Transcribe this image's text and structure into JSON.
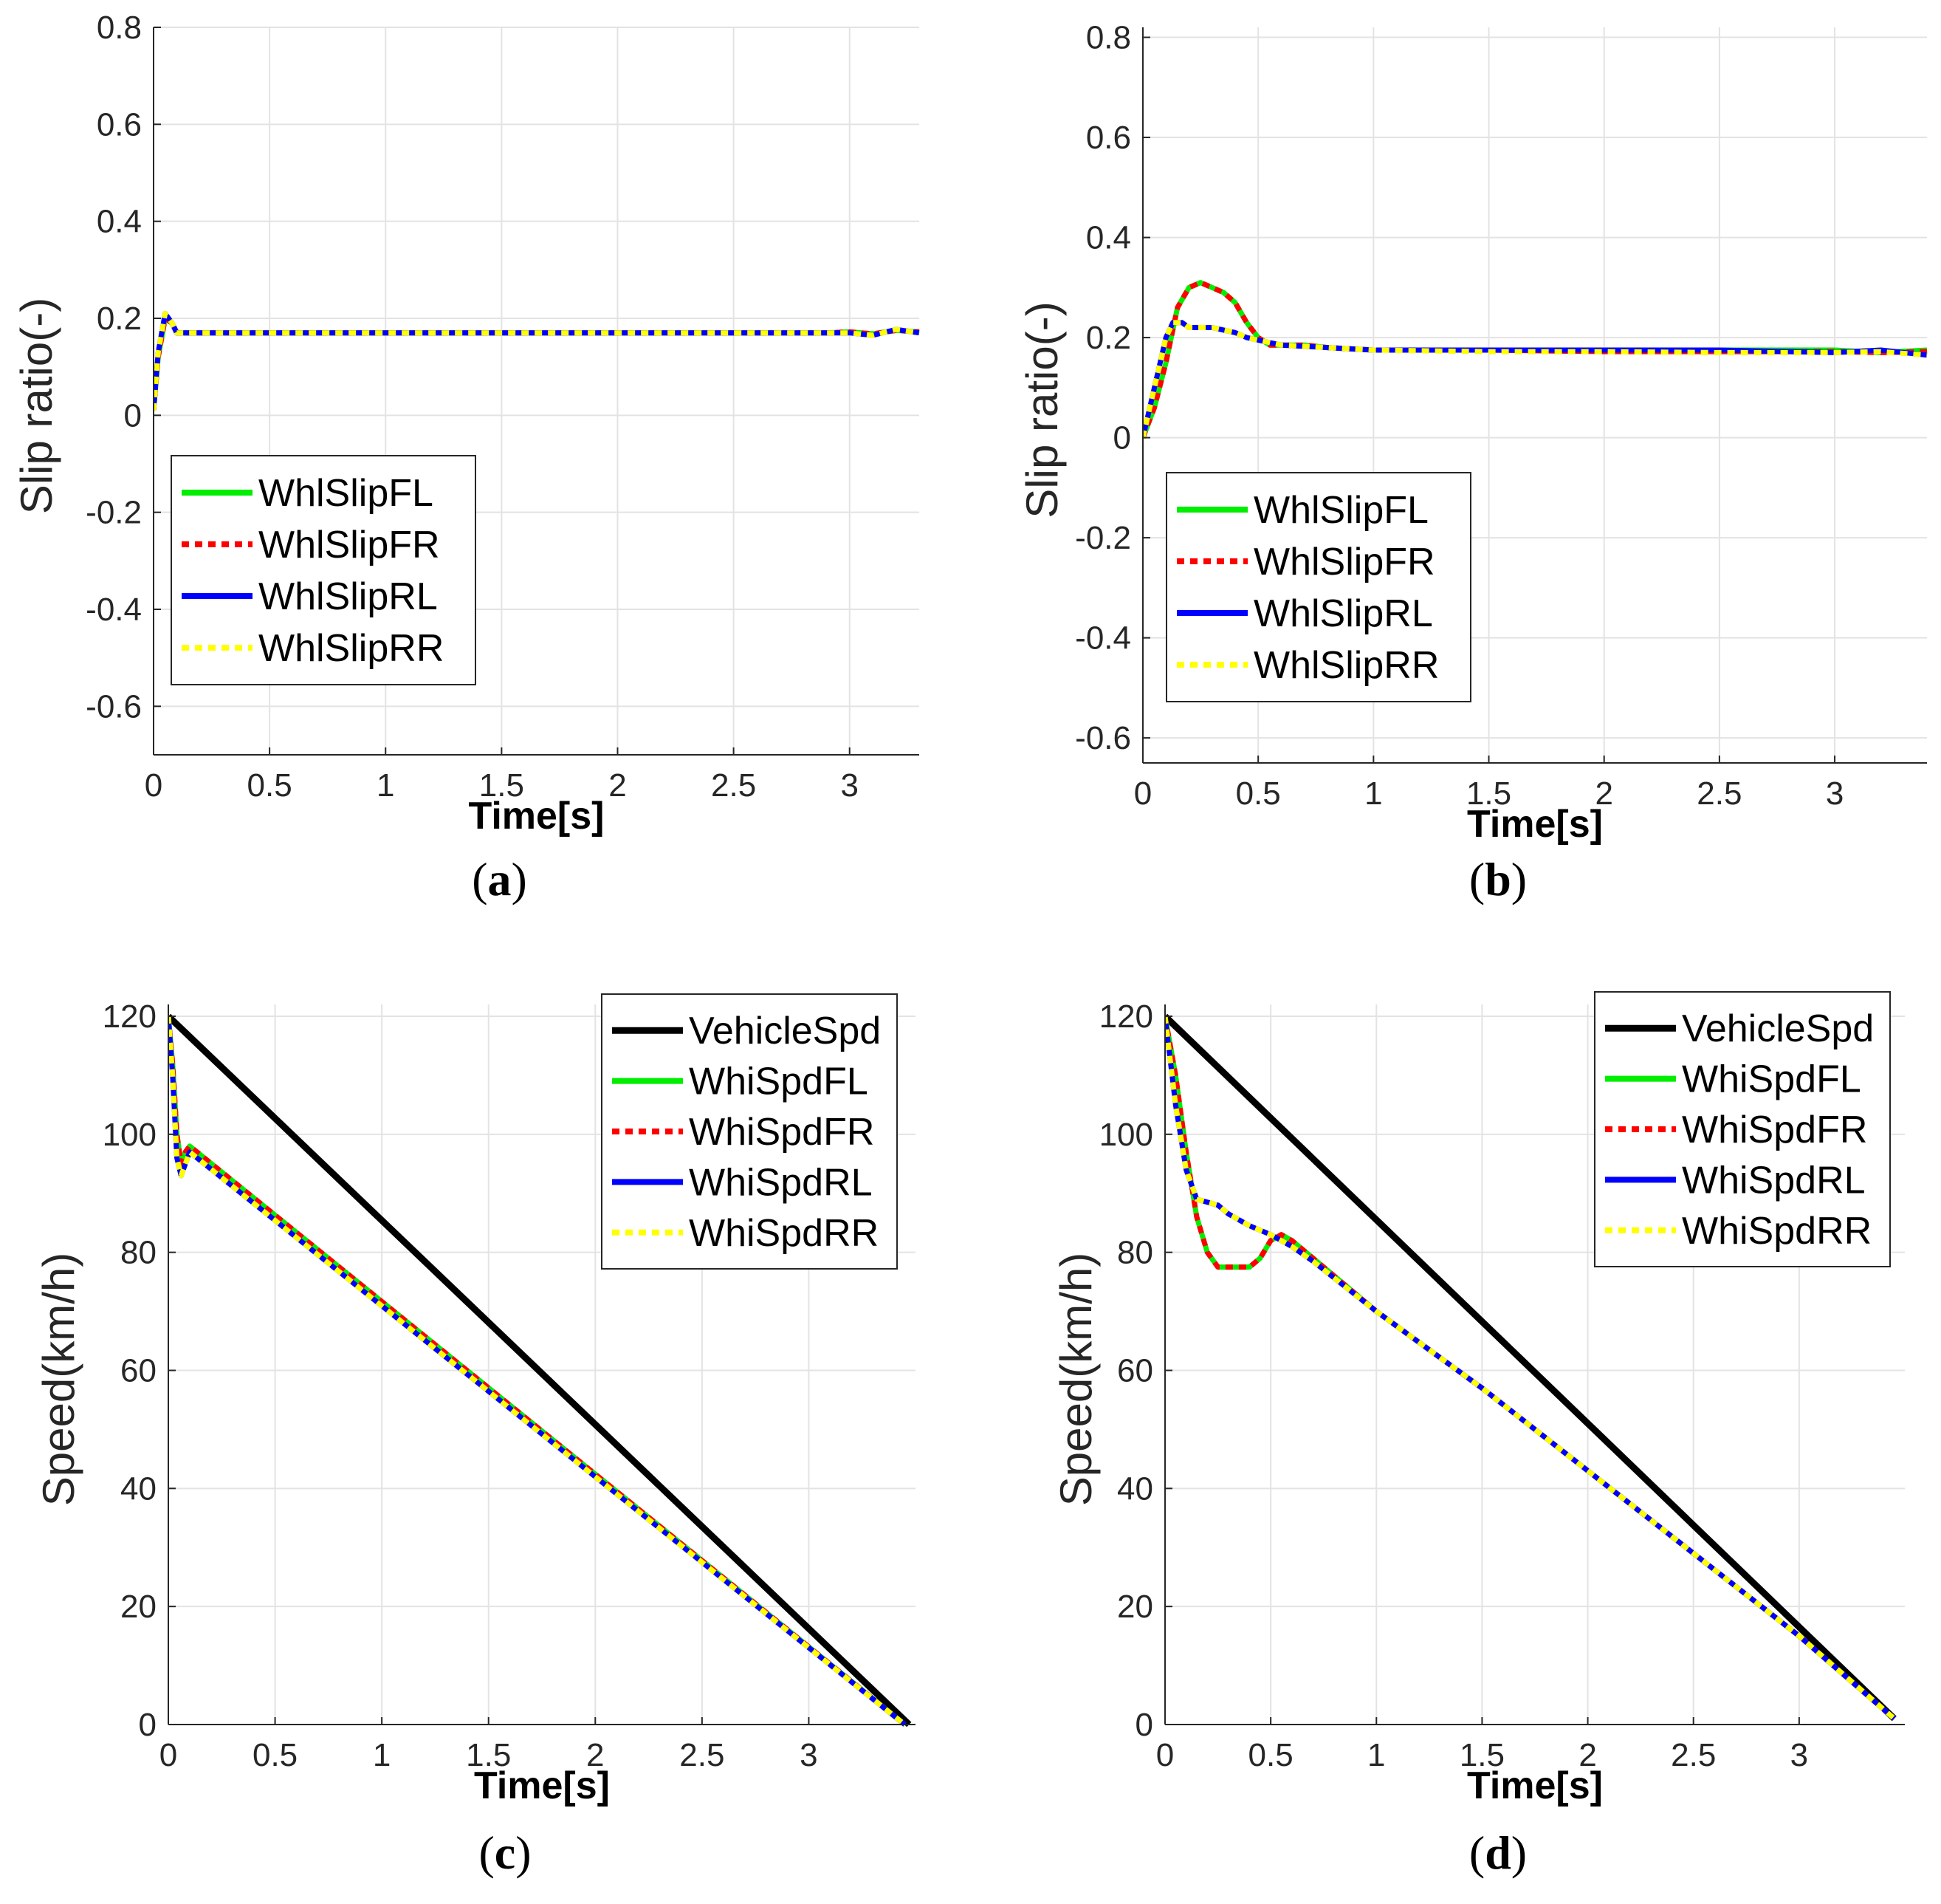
{
  "chart_data": [
    {
      "id": "a",
      "type": "line",
      "caption_letter": "a",
      "xlabel": "Time[s]",
      "ylabel": "Slip ratio(-)",
      "xlim": [
        0,
        3.3
      ],
      "ylim": [
        -0.7,
        0.8
      ],
      "xticks": [
        0,
        0.5,
        1,
        1.5,
        2,
        2.5,
        3
      ],
      "xtick_labels": [
        "0",
        "0.5",
        "1",
        "1.5",
        "2",
        "2.5",
        "3"
      ],
      "yticks": [
        0.8,
        0.6,
        0.4,
        0.2,
        0,
        -0.2,
        -0.4,
        -0.6
      ],
      "ytick_labels": [
        "0.8",
        "0.6",
        "0.4",
        "0.2",
        "0",
        "-0.2",
        "-0.4",
        "-0.6"
      ],
      "grid": true,
      "legend_position": "bottom-left",
      "series": [
        {
          "name": "WhlSlipFL",
          "color": "#00ee00",
          "style": "solid",
          "x": [
            0,
            0.02,
            0.05,
            0.08,
            0.1,
            0.2,
            0.5,
            1.0,
            1.5,
            2.0,
            2.5,
            2.9,
            3.0,
            3.1,
            3.2,
            3.3
          ],
          "y": [
            0.01,
            0.12,
            0.2,
            0.19,
            0.17,
            0.17,
            0.17,
            0.17,
            0.17,
            0.17,
            0.17,
            0.17,
            0.172,
            0.168,
            0.175,
            0.172
          ]
        },
        {
          "name": "WhlSlipFR",
          "color": "#ff0000",
          "style": "dotted",
          "x": [
            0,
            0.02,
            0.05,
            0.08,
            0.1,
            0.2,
            0.5,
            1.0,
            1.5,
            2.0,
            2.5,
            2.9,
            3.0,
            3.1,
            3.2,
            3.3
          ],
          "y": [
            0.01,
            0.12,
            0.2,
            0.19,
            0.17,
            0.17,
            0.17,
            0.17,
            0.17,
            0.17,
            0.17,
            0.17,
            0.172,
            0.168,
            0.175,
            0.172
          ]
        },
        {
          "name": "WhlSlipRL",
          "color": "#0000ff",
          "style": "solid",
          "x": [
            0,
            0.02,
            0.05,
            0.08,
            0.1,
            0.2,
            0.5,
            1.0,
            1.5,
            2.0,
            2.5,
            2.9,
            3.0,
            3.1,
            3.2,
            3.3
          ],
          "y": [
            0.01,
            0.13,
            0.21,
            0.19,
            0.17,
            0.17,
            0.17,
            0.17,
            0.17,
            0.17,
            0.17,
            0.17,
            0.17,
            0.165,
            0.177,
            0.17
          ]
        },
        {
          "name": "WhlSlipRR",
          "color": "#ffff00",
          "style": "dotted",
          "x": [
            0,
            0.02,
            0.05,
            0.08,
            0.1,
            0.2,
            0.5,
            1.0,
            1.5,
            2.0,
            2.5,
            2.9,
            3.0,
            3.1,
            3.2,
            3.3
          ],
          "y": [
            0.01,
            0.13,
            0.21,
            0.19,
            0.17,
            0.17,
            0.17,
            0.17,
            0.17,
            0.17,
            0.17,
            0.17,
            0.17,
            0.165,
            0.177,
            0.17
          ]
        }
      ]
    },
    {
      "id": "b",
      "type": "line",
      "caption_letter": "b",
      "xlabel": "Time[s]",
      "ylabel": "Slip ratio(-)",
      "xlim": [
        0,
        3.4
      ],
      "ylim": [
        -0.65,
        0.82
      ],
      "xticks": [
        0,
        0.5,
        1,
        1.5,
        2,
        2.5,
        3
      ],
      "xtick_labels": [
        "0",
        "0.5",
        "1",
        "1.5",
        "2",
        "2.5",
        "3"
      ],
      "yticks": [
        0.8,
        0.6,
        0.4,
        0.2,
        0,
        -0.2,
        -0.4,
        -0.6
      ],
      "ytick_labels": [
        "0.8",
        "0.6",
        "0.4",
        "0.2",
        "0",
        "-0.2",
        "-0.4",
        "-0.6"
      ],
      "grid": true,
      "legend_position": "bottom-left",
      "series": [
        {
          "name": "WhlSlipFL",
          "color": "#00ee00",
          "style": "solid",
          "x": [
            0,
            0.05,
            0.1,
            0.15,
            0.2,
            0.25,
            0.3,
            0.35,
            0.4,
            0.45,
            0.5,
            0.55,
            0.6,
            0.7,
            0.8,
            1.0,
            1.5,
            2.0,
            2.5,
            3.0,
            3.2,
            3.4
          ],
          "y": [
            0.0,
            0.06,
            0.15,
            0.26,
            0.3,
            0.31,
            0.3,
            0.29,
            0.27,
            0.23,
            0.2,
            0.185,
            0.185,
            0.185,
            0.18,
            0.175,
            0.175,
            0.175,
            0.175,
            0.175,
            0.17,
            0.175
          ]
        },
        {
          "name": "WhlSlipFR",
          "color": "#ff0000",
          "style": "dotted",
          "x": [
            0,
            0.05,
            0.1,
            0.15,
            0.2,
            0.25,
            0.3,
            0.35,
            0.4,
            0.45,
            0.5,
            0.55,
            0.6,
            0.7,
            0.8,
            1.0,
            1.5,
            2.0,
            2.5,
            3.0,
            3.2,
            3.4
          ],
          "y": [
            0.0,
            0.06,
            0.15,
            0.26,
            0.3,
            0.31,
            0.3,
            0.29,
            0.27,
            0.23,
            0.2,
            0.185,
            0.185,
            0.185,
            0.18,
            0.175,
            0.175,
            0.172,
            0.172,
            0.172,
            0.17,
            0.172
          ]
        },
        {
          "name": "WhlSlipRL",
          "color": "#0000ff",
          "style": "solid",
          "x": [
            0,
            0.05,
            0.1,
            0.13,
            0.17,
            0.2,
            0.25,
            0.3,
            0.35,
            0.4,
            0.45,
            0.5,
            0.55,
            0.6,
            0.8,
            1.0,
            1.5,
            2.0,
            2.5,
            3.0,
            3.2,
            3.4
          ],
          "y": [
            0.0,
            0.1,
            0.2,
            0.23,
            0.23,
            0.22,
            0.22,
            0.22,
            0.215,
            0.21,
            0.2,
            0.195,
            0.19,
            0.185,
            0.18,
            0.175,
            0.175,
            0.175,
            0.175,
            0.17,
            0.175,
            0.165
          ]
        },
        {
          "name": "WhlSlipRR",
          "color": "#ffff00",
          "style": "dotted",
          "x": [
            0,
            0.05,
            0.1,
            0.13,
            0.17,
            0.2,
            0.25,
            0.3,
            0.35,
            0.4,
            0.45,
            0.5,
            0.55,
            0.6,
            0.8,
            1.0,
            1.5,
            2.0,
            2.5,
            3.0,
            3.2,
            3.4
          ],
          "y": [
            0.0,
            0.1,
            0.2,
            0.23,
            0.23,
            0.22,
            0.22,
            0.22,
            0.215,
            0.21,
            0.2,
            0.195,
            0.19,
            0.185,
            0.18,
            0.175,
            0.172,
            0.172,
            0.17,
            0.17,
            0.172,
            0.165
          ]
        }
      ]
    },
    {
      "id": "c",
      "type": "line",
      "caption_letter": "c",
      "xlabel": "Time[s]",
      "ylabel": "Speed(km/h)",
      "xlim": [
        0,
        3.5
      ],
      "ylim": [
        0,
        122
      ],
      "xticks": [
        0,
        0.5,
        1,
        1.5,
        2,
        2.5,
        3
      ],
      "xtick_labels": [
        "0",
        "0.5",
        "1",
        "1.5",
        "2",
        "2.5",
        "3"
      ],
      "yticks": [
        120,
        100,
        80,
        60,
        40,
        20,
        0
      ],
      "ytick_labels": [
        "120",
        "100",
        "80",
        "60",
        "40",
        "20",
        "0"
      ],
      "grid": true,
      "legend_position": "top-right",
      "series": [
        {
          "name": "VehicleSpd",
          "color": "#000000",
          "style": "solid",
          "x": [
            0,
            3.47
          ],
          "y": [
            120,
            0
          ]
        },
        {
          "name": "WhiSpdFL",
          "color": "#00ee00",
          "style": "solid",
          "x": [
            0,
            0.02,
            0.04,
            0.06,
            0.08,
            0.1,
            3.45
          ],
          "y": [
            120,
            112,
            100,
            95,
            97,
            98,
            0
          ]
        },
        {
          "name": "WhiSpdFR",
          "color": "#ff0000",
          "style": "dotted",
          "x": [
            0,
            0.02,
            0.04,
            0.06,
            0.08,
            0.1,
            3.45
          ],
          "y": [
            120,
            112,
            100,
            95,
            97,
            98,
            0
          ]
        },
        {
          "name": "WhiSpdRL",
          "color": "#0000ff",
          "style": "solid",
          "x": [
            0,
            0.02,
            0.04,
            0.06,
            0.08,
            0.1,
            3.45
          ],
          "y": [
            120,
            110,
            96,
            93,
            95,
            97,
            0
          ]
        },
        {
          "name": "WhiSpdRR",
          "color": "#ffff00",
          "style": "dotted",
          "x": [
            0,
            0.02,
            0.04,
            0.06,
            0.08,
            0.1,
            3.45
          ],
          "y": [
            120,
            110,
            96,
            93,
            95,
            97,
            0
          ]
        }
      ]
    },
    {
      "id": "d",
      "type": "line",
      "caption_letter": "d",
      "xlabel": "Time[s]",
      "ylabel": "Speed(km/h)",
      "xlim": [
        0,
        3.5
      ],
      "ylim": [
        0,
        122
      ],
      "xticks": [
        0,
        0.5,
        1,
        1.5,
        2,
        2.5,
        3
      ],
      "xtick_labels": [
        "0",
        "0.5",
        "1",
        "1.5",
        "2",
        "2.5",
        "3"
      ],
      "yticks": [
        120,
        100,
        80,
        60,
        40,
        20,
        0
      ],
      "ytick_labels": [
        "120",
        "100",
        "80",
        "60",
        "40",
        "20",
        "0"
      ],
      "grid": true,
      "legend_position": "top-right",
      "series": [
        {
          "name": "VehicleSpd",
          "color": "#000000",
          "style": "solid",
          "x": [
            0,
            3.45
          ],
          "y": [
            120,
            1
          ]
        },
        {
          "name": "WhiSpdFL",
          "color": "#00ee00",
          "style": "solid",
          "x": [
            0,
            0.05,
            0.1,
            0.15,
            0.2,
            0.25,
            0.3,
            0.35,
            0.4,
            0.45,
            0.5,
            0.55,
            0.6,
            0.7,
            1.0,
            1.5,
            2.0,
            2.5,
            3.0,
            3.45
          ],
          "y": [
            120,
            110,
            97,
            86,
            80,
            77.5,
            77.5,
            77.5,
            77.5,
            79,
            82,
            83,
            82,
            79,
            70,
            57,
            43,
            29,
            15,
            1
          ]
        },
        {
          "name": "WhiSpdFR",
          "color": "#ff0000",
          "style": "dotted",
          "x": [
            0,
            0.05,
            0.1,
            0.15,
            0.2,
            0.25,
            0.3,
            0.35,
            0.4,
            0.45,
            0.5,
            0.55,
            0.6,
            0.7,
            1.0,
            1.5,
            2.0,
            2.5,
            3.0,
            3.45
          ],
          "y": [
            120,
            110,
            97,
            86,
            80,
            77.5,
            77.5,
            77.5,
            77.5,
            79,
            82,
            83,
            82,
            79,
            70,
            57,
            43,
            29,
            15,
            1
          ]
        },
        {
          "name": "WhiSpdRL",
          "color": "#0000ff",
          "style": "solid",
          "x": [
            0,
            0.05,
            0.1,
            0.15,
            0.2,
            0.25,
            0.3,
            0.4,
            0.5,
            0.6,
            0.7,
            1.0,
            1.5,
            2.0,
            2.5,
            3.0,
            3.45
          ],
          "y": [
            120,
            105,
            94,
            89,
            88.5,
            88,
            86.5,
            84.5,
            83,
            81,
            78.5,
            70,
            57,
            43,
            29,
            15,
            1
          ]
        },
        {
          "name": "WhiSpdRR",
          "color": "#ffff00",
          "style": "dotted",
          "x": [
            0,
            0.05,
            0.1,
            0.15,
            0.2,
            0.25,
            0.3,
            0.4,
            0.5,
            0.6,
            0.7,
            1.0,
            1.5,
            2.0,
            2.5,
            3.0,
            3.45
          ],
          "y": [
            120,
            105,
            94,
            89,
            88.5,
            88,
            86.5,
            84.5,
            83,
            81,
            78.5,
            70,
            57,
            43,
            29,
            15,
            1
          ]
        }
      ]
    }
  ]
}
